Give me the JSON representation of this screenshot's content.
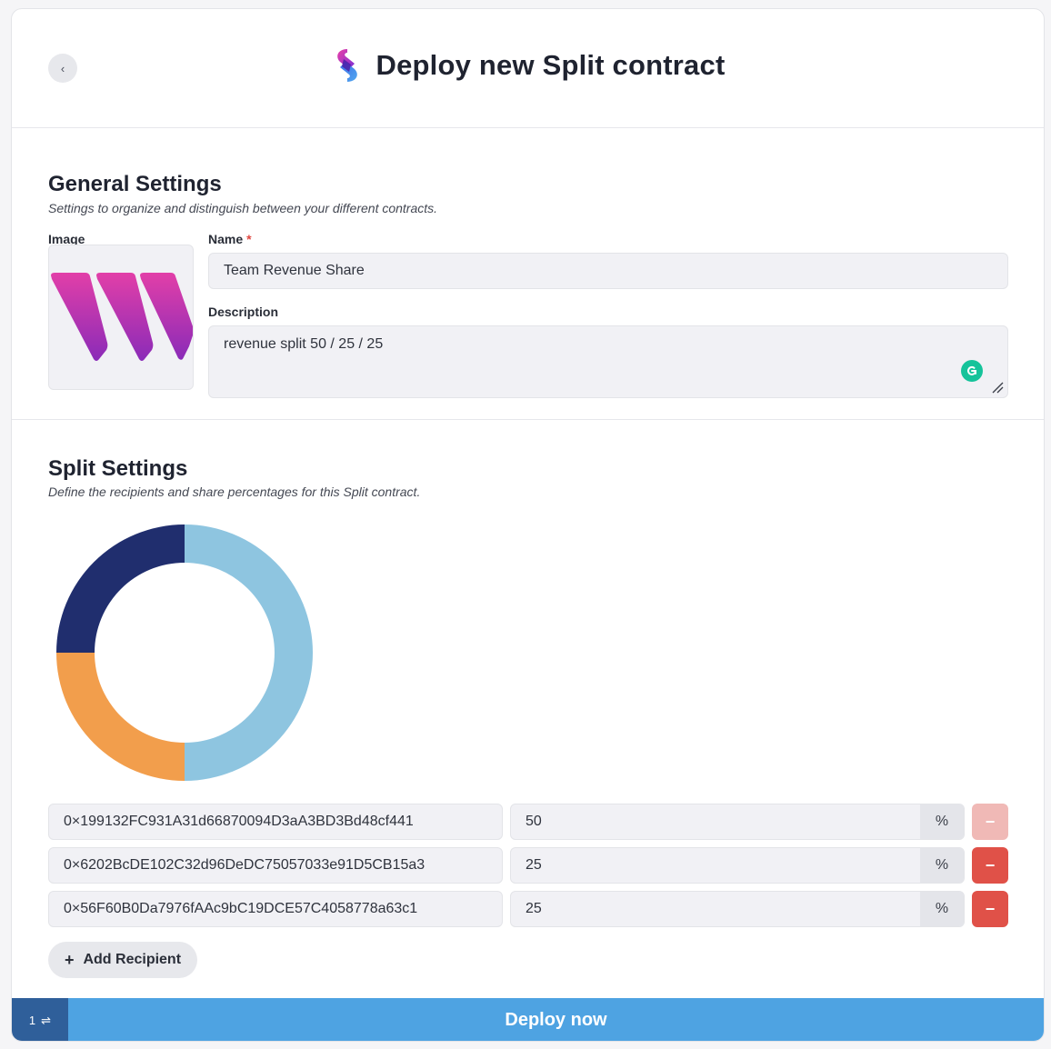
{
  "header": {
    "back_icon": "chevron-left-icon",
    "back_glyph": "‹",
    "title": "Deploy new Split contract"
  },
  "general": {
    "title": "General Settings",
    "subtitle": "Settings to organize and distinguish between your different contracts.",
    "image_label": "Image",
    "name_label": "Name",
    "required_mark": "*",
    "name_value": "Team Revenue Share",
    "description_label": "Description",
    "description_value": "revenue split 50 / 25 / 25"
  },
  "split": {
    "title": "Split Settings",
    "subtitle": "Define the recipients and share percentages for this Split contract.",
    "recipients": [
      {
        "address": "0×199132FC931A31d66870094D3aA3BD3Bd48cf441",
        "percent": "50",
        "unit": "%",
        "remove": "−",
        "remove_enabled": false
      },
      {
        "address": "0×6202BcDE102C32d96DeDC75057033e91D5CB15a3",
        "percent": "25",
        "unit": "%",
        "remove": "−",
        "remove_enabled": true
      },
      {
        "address": "0×56F60B0Da7976fAAc9bC19DCE57C4058778a63c1",
        "percent": "25",
        "unit": "%",
        "remove": "−",
        "remove_enabled": true
      }
    ],
    "add_icon": "+",
    "add_label": "Add Recipient"
  },
  "chart_data": {
    "type": "pie",
    "variant": "donut",
    "categories": [
      "0×199132FC931A31d66870094D3aA3BD3Bd48cf441",
      "0×6202BcDE102C32d96DeDC75057033e91D5CB15a3",
      "0×56F60B0Da7976fAAc9bC19DCE57C4058778a63c1"
    ],
    "values": [
      50,
      25,
      25
    ],
    "colors": [
      "#8ec5e0",
      "#f29e4c",
      "#202e6e"
    ],
    "title": ""
  },
  "footer": {
    "tx_count": "1",
    "tx_icon": "⇌",
    "deploy_label": "Deploy now"
  },
  "colors": {
    "accent": "#4ea3e2",
    "danger": "#e05148",
    "danger_disabled": "#f0b9b6",
    "tx_badge": "#2f5f9a"
  }
}
